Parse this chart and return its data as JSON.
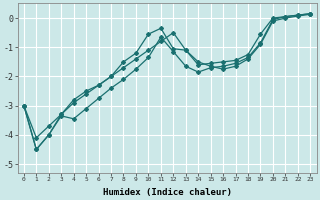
{
  "xlabel": "Humidex (Indice chaleur)",
  "background_color": "#cce8e8",
  "grid_color": "#ffffff",
  "line_color": "#1a7070",
  "xlim": [
    -0.5,
    23.5
  ],
  "ylim": [
    -5.3,
    0.5
  ],
  "yticks": [
    0,
    -1,
    -2,
    -3,
    -4,
    -5
  ],
  "xticks": [
    0,
    1,
    2,
    3,
    4,
    5,
    6,
    7,
    8,
    9,
    10,
    11,
    12,
    13,
    14,
    15,
    16,
    17,
    18,
    19,
    20,
    21,
    22,
    23
  ],
  "series1_x": [
    0,
    1,
    2,
    3,
    4,
    5,
    6,
    7,
    8,
    9,
    10,
    11,
    12,
    13,
    14,
    15,
    16,
    17,
    18,
    19,
    20,
    21,
    22,
    23
  ],
  "series1_y": [
    -3.0,
    -4.5,
    -4.0,
    -3.3,
    -2.8,
    -2.5,
    -2.3,
    -2.0,
    -1.5,
    -1.2,
    -0.55,
    -0.35,
    -1.05,
    -1.1,
    -1.6,
    -1.55,
    -1.5,
    -1.45,
    -1.25,
    -0.55,
    0.0,
    0.05,
    0.1,
    0.15
  ],
  "series2_x": [
    0,
    1,
    2,
    3,
    4,
    5,
    6,
    7,
    8,
    9,
    10,
    11,
    12,
    13,
    14,
    15,
    16,
    17,
    18,
    19,
    20,
    21,
    22,
    23
  ],
  "series2_y": [
    -3.0,
    -4.5,
    -4.0,
    -3.35,
    -3.45,
    -3.1,
    -2.75,
    -2.4,
    -2.1,
    -1.75,
    -1.35,
    -0.65,
    -1.15,
    -1.65,
    -1.85,
    -1.7,
    -1.65,
    -1.55,
    -1.35,
    -0.85,
    -0.05,
    0.05,
    0.1,
    0.15
  ],
  "series3_x": [
    0,
    1,
    2,
    3,
    4,
    5,
    6,
    7,
    8,
    9,
    10,
    11,
    12,
    13,
    14,
    15,
    16,
    17,
    18,
    19,
    20,
    21,
    22,
    23
  ],
  "series3_y": [
    -3.0,
    -4.1,
    -3.7,
    -3.3,
    -2.9,
    -2.6,
    -2.3,
    -2.0,
    -1.7,
    -1.4,
    -1.1,
    -0.8,
    -0.5,
    -1.1,
    -1.5,
    -1.65,
    -1.75,
    -1.65,
    -1.4,
    -0.9,
    -0.1,
    0.0,
    0.07,
    0.13
  ]
}
